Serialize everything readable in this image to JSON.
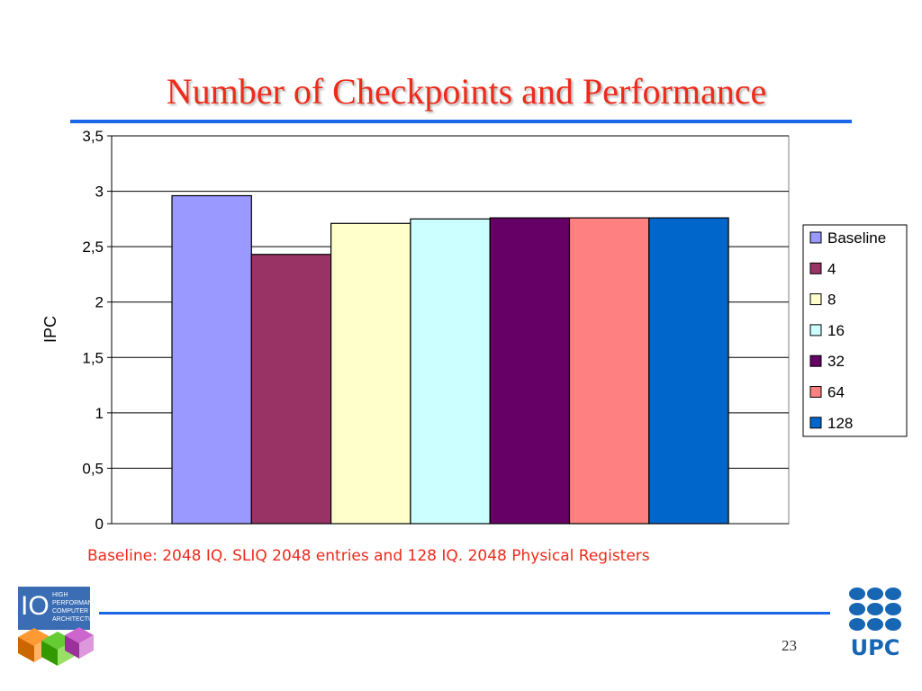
{
  "slide": {
    "title": "Number of Checkpoints and Performance",
    "caption": "Baseline: 2048 IQ. SLIQ 2048 entries and 128 IQ. 2048 Physical Registers",
    "page_number": "23"
  },
  "logos": {
    "left": {
      "name": "hpca-logo",
      "text_lines": [
        "HIGH",
        "PERFORMANCE",
        "COMPUTER",
        "ARCHITECTURE"
      ],
      "mark": "IO"
    },
    "right": {
      "name": "upc-logo",
      "text": "UPC"
    }
  },
  "colors": {
    "title": "#ee2a1a",
    "rule": "#1a66e6",
    "caption": "#ee2a1a",
    "upc": "#1766b4"
  },
  "chart_data": {
    "type": "bar",
    "title": "",
    "xlabel": "",
    "ylabel": "IPC",
    "ylim": [
      0,
      3.5
    ],
    "yticks": [
      "0",
      "0,5",
      "1",
      "1,5",
      "2",
      "2,5",
      "3",
      "3,5"
    ],
    "grid": true,
    "legend_position": "right",
    "series": [
      {
        "name": "Baseline",
        "values": [
          2.96
        ],
        "color": "#9999ff"
      },
      {
        "name": "4",
        "values": [
          2.43
        ],
        "color": "#993366"
      },
      {
        "name": "8",
        "values": [
          2.71
        ],
        "color": "#ffffcc"
      },
      {
        "name": "16",
        "values": [
          2.75
        ],
        "color": "#ccffff"
      },
      {
        "name": "32",
        "values": [
          2.76
        ],
        "color": "#660066"
      },
      {
        "name": "64",
        "values": [
          2.76
        ],
        "color": "#ff8080"
      },
      {
        "name": "128",
        "values": [
          2.76
        ],
        "color": "#0066cc"
      }
    ]
  }
}
